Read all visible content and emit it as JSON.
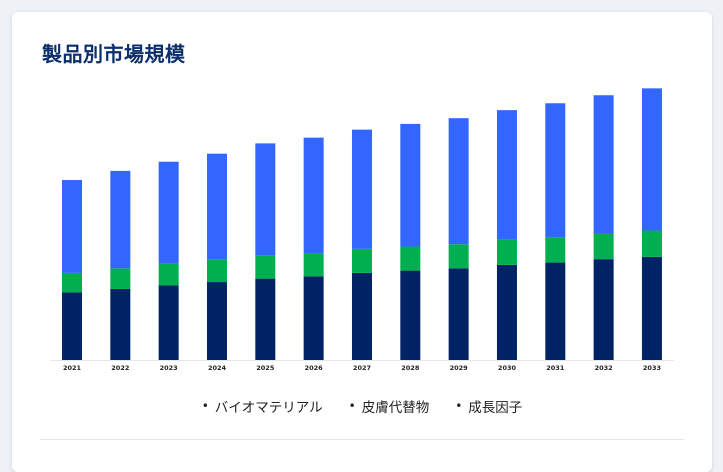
{
  "page": {
    "title": "製品別市場規模"
  },
  "chart_data": {
    "type": "bar",
    "stacked": true,
    "title": "製品別市場規模",
    "categories": [
      "2021",
      "2022",
      "2023",
      "2024",
      "2025",
      "2026",
      "2027",
      "2028",
      "2029",
      "2030",
      "2031",
      "2032",
      "2033"
    ],
    "series": [
      {
        "name": "成長因子",
        "color": "#002366",
        "values": [
          59,
          62,
          65,
          68,
          71,
          73,
          76,
          78,
          80,
          83,
          85,
          88,
          90
        ]
      },
      {
        "name": "皮膚代替物",
        "color": "#00b050",
        "values": [
          17,
          18,
          19,
          20,
          20,
          20,
          21,
          21,
          21,
          22,
          22,
          22,
          23
        ]
      },
      {
        "name": "バイオマテリアル",
        "color": "#3366ff",
        "values": [
          81,
          85,
          89,
          92,
          98,
          101,
          104,
          107,
          110,
          113,
          117,
          121,
          124
        ]
      }
    ],
    "ylim": [
      0,
      260
    ],
    "legend_order": [
      "バイオマテリアル",
      "皮膚代替物",
      "成長因子"
    ],
    "legend_position": "bottom",
    "grid": false
  }
}
